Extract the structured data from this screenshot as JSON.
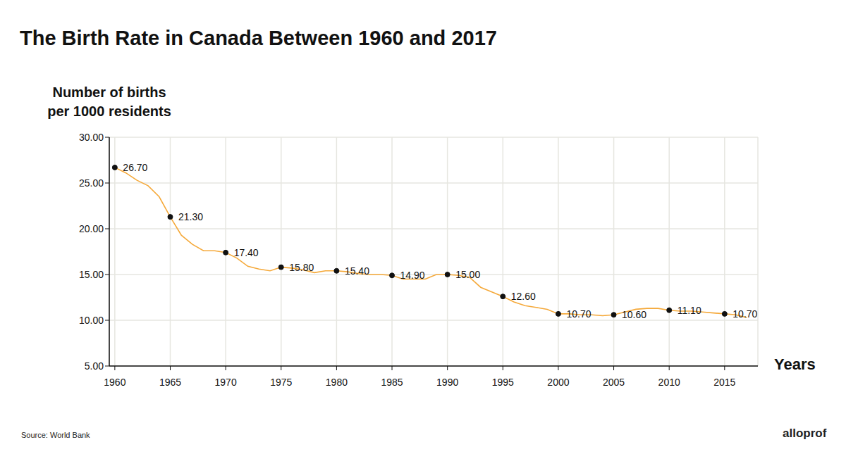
{
  "chart_data": {
    "type": "line",
    "title": "The Birth Rate in Canada Between 1960 and 2017",
    "y_label": "Number of births\nper 1000 residents",
    "x_label": "Years",
    "source": "Source: World Bank",
    "brand": "alloprof",
    "color": "#f5a93a",
    "grid": true,
    "x": [
      1960,
      1961,
      1962,
      1963,
      1964,
      1965,
      1966,
      1967,
      1968,
      1969,
      1970,
      1971,
      1972,
      1973,
      1974,
      1975,
      1976,
      1977,
      1978,
      1979,
      1980,
      1981,
      1982,
      1983,
      1984,
      1985,
      1986,
      1987,
      1988,
      1989,
      1990,
      1991,
      1992,
      1993,
      1994,
      1995,
      1996,
      1997,
      1998,
      1999,
      2000,
      2001,
      2002,
      2003,
      2004,
      2005,
      2006,
      2007,
      2008,
      2009,
      2010,
      2011,
      2012,
      2013,
      2014,
      2015,
      2016,
      2017
    ],
    "values": [
      26.7,
      26.1,
      25.3,
      24.7,
      23.5,
      21.3,
      19.3,
      18.3,
      17.6,
      17.6,
      17.4,
      16.8,
      15.9,
      15.6,
      15.4,
      15.8,
      15.7,
      15.5,
      15.2,
      15.4,
      15.4,
      15.3,
      15.1,
      15.0,
      15.0,
      14.9,
      14.5,
      14.5,
      14.5,
      15.0,
      15.0,
      14.9,
      14.7,
      13.6,
      13.1,
      12.6,
      12.0,
      11.6,
      11.4,
      11.2,
      10.7,
      10.7,
      10.6,
      10.6,
      10.5,
      10.6,
      10.9,
      11.2,
      11.3,
      11.3,
      11.1,
      11.0,
      11.0,
      10.9,
      10.8,
      10.7,
      10.6,
      10.3
    ],
    "annotations": [
      {
        "x": 1960,
        "y": 26.7,
        "label": "26.70"
      },
      {
        "x": 1965,
        "y": 21.3,
        "label": "21.30"
      },
      {
        "x": 1970,
        "y": 17.4,
        "label": "17.40"
      },
      {
        "x": 1975,
        "y": 15.8,
        "label": "15.80"
      },
      {
        "x": 1980,
        "y": 15.4,
        "label": "15.40"
      },
      {
        "x": 1985,
        "y": 14.9,
        "label": "14.90"
      },
      {
        "x": 1990,
        "y": 15.0,
        "label": "15.00"
      },
      {
        "x": 1995,
        "y": 12.6,
        "label": "12.60"
      },
      {
        "x": 2000,
        "y": 10.7,
        "label": "10.70"
      },
      {
        "x": 2005,
        "y": 10.6,
        "label": "10.60"
      },
      {
        "x": 2010,
        "y": 11.1,
        "label": "11.10"
      },
      {
        "x": 2015,
        "y": 10.7,
        "label": "10.70"
      }
    ],
    "xlim": [
      1959.5,
      2018
    ],
    "xticks": [
      1960,
      1965,
      1970,
      1975,
      1980,
      1985,
      1990,
      1995,
      2000,
      2005,
      2010,
      2015
    ],
    "ylim": [
      5,
      30
    ],
    "yticks": [
      {
        "value": 5,
        "label": "5.00"
      },
      {
        "value": 10,
        "label": "10.00"
      },
      {
        "value": 15,
        "label": "15.00"
      },
      {
        "value": 20,
        "label": "20.00"
      },
      {
        "value": 25,
        "label": "25.00"
      },
      {
        "value": 30,
        "label": "30.00"
      }
    ]
  }
}
